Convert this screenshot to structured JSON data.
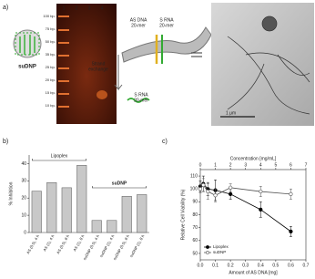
{
  "panel_labels": [
    "a)",
    "b)",
    "c)"
  ],
  "gel": {
    "lanes": [
      "1",
      "2",
      "3",
      "4"
    ],
    "ladder": [
      "100 bp-",
      "75 bp-",
      "50 bp-",
      "35 bp-",
      "25 bp-",
      "20 bp-",
      "15 bp-",
      "10 bp-"
    ]
  },
  "schematic": {
    "particle": "suDNP",
    "arrow": [
      "Strand",
      "exchange"
    ],
    "as_dna": [
      "AS DNA",
      "20-mer"
    ],
    "s_rna_top": [
      "S RNA",
      "20-mer"
    ],
    "s_rna_bottom": [
      "S RNA",
      "20-mer"
    ]
  },
  "tem": {
    "scale_bar": "1 μm"
  },
  "chart_data": [
    {
      "type": "bar",
      "ylabel": "% Inhibition",
      "categories": [
        "AS (0.5), 4 h",
        "AS (1), 4 h",
        "AS (0.5), 8 h",
        "AS (1), 8 h",
        "suDNP (0.5), 4 h",
        "suDNP (1), 4 h",
        "suDNP (0.5), 8 h",
        "suDNP (1), 8 h"
      ],
      "values": [
        24,
        29,
        26,
        39,
        7,
        7,
        21,
        22
      ],
      "color": "#c8c8c8",
      "ylim": [
        0,
        45
      ],
      "yticks": [
        0,
        10,
        20,
        30,
        40
      ],
      "annotations": [
        "Lipoplex",
        "suDNP"
      ]
    },
    {
      "type": "line",
      "xlabel": "Amount of AS DNA [mg]",
      "ylabel": "Relative Cell Viability (%)",
      "x2label": "Concentration [mg/mL]",
      "x": [
        0,
        0.02,
        0.05,
        0.1,
        0.2,
        0.4,
        0.6
      ],
      "series": [
        {
          "name": "Lipoplex",
          "color": "#000000",
          "marker": "filled",
          "values": [
            102,
            104,
            100,
            99,
            96,
            84,
            67
          ],
          "errors": [
            4,
            6,
            5,
            8,
            4,
            6,
            4
          ]
        },
        {
          "name": "suDNP",
          "color": "#555555",
          "marker": "open",
          "values": [
            100,
            103,
            98,
            95,
            101,
            98,
            96
          ],
          "errors": [
            3,
            5,
            6,
            5,
            3,
            4,
            4
          ]
        }
      ],
      "xlim": [
        0,
        0.7
      ],
      "xticks": [
        {
          "value": 0,
          "label": "0.0"
        },
        0.1,
        0.2,
        0.3,
        0.4,
        0.5,
        0.6,
        0.7
      ],
      "x2lim": [
        0,
        7
      ],
      "x2ticks": [
        0,
        1,
        2,
        3,
        4,
        5,
        6,
        7
      ],
      "ylim": [
        45,
        115
      ],
      "yticks": [
        50,
        60,
        70,
        80,
        90,
        100,
        110
      ],
      "legend": "lower left"
    }
  ]
}
